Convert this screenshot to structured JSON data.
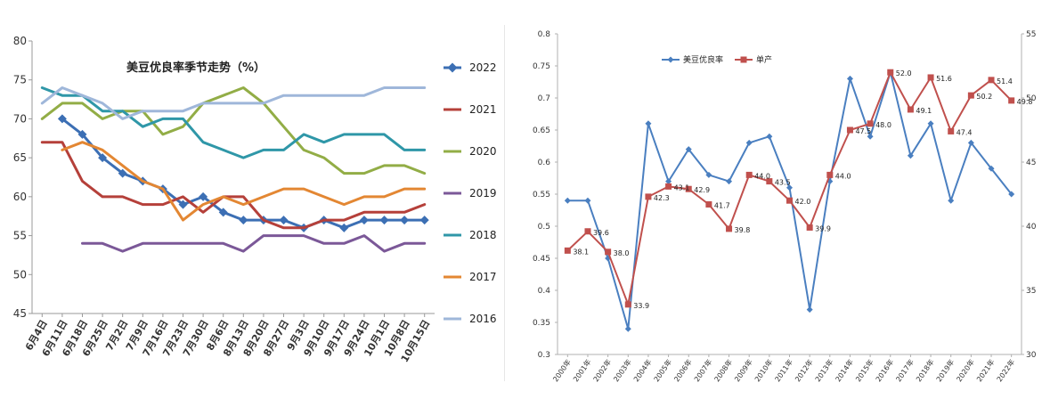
{
  "chart_data": [
    {
      "type": "line",
      "title": "美豆优良率季节走势（%）",
      "categories": [
        "6月4日",
        "6月11日",
        "6月18日",
        "6月25日",
        "7月2日",
        "7月9日",
        "7月16日",
        "7月23日",
        "7月30日",
        "8月6日",
        "8月13日",
        "8月20日",
        "8月27日",
        "9月3日",
        "9月10日",
        "9月17日",
        "9月24日",
        "10月1日",
        "10月8日",
        "10月15日"
      ],
      "ylim": [
        45,
        80
      ],
      "yticks": [
        45,
        50,
        55,
        60,
        65,
        70,
        75,
        80
      ],
      "legend_position": "right",
      "series": [
        {
          "name": "2022",
          "color": "#3c6fb4",
          "marker": "diamond",
          "values": [
            null,
            70,
            68,
            65,
            63,
            62,
            61,
            59,
            60,
            58,
            57,
            57,
            57,
            56,
            57,
            56,
            57,
            57,
            57,
            57
          ]
        },
        {
          "name": "2021",
          "color": "#b5403a",
          "values": [
            67,
            67,
            62,
            60,
            60,
            59,
            59,
            60,
            58,
            60,
            60,
            57,
            56,
            56,
            57,
            57,
            58,
            58,
            58,
            59
          ]
        },
        {
          "name": "2020",
          "color": "#92ad46",
          "values": [
            70,
            72,
            72,
            70,
            71,
            71,
            68,
            69,
            72,
            73,
            74,
            72,
            69,
            66,
            65,
            63,
            63,
            64,
            64,
            63
          ]
        },
        {
          "name": "2019",
          "color": "#7b5898",
          "values": [
            null,
            null,
            54,
            54,
            53,
            54,
            54,
            54,
            54,
            54,
            53,
            55,
            55,
            55,
            54,
            54,
            55,
            53,
            54,
            54
          ]
        },
        {
          "name": "2018",
          "color": "#2f97a8",
          "values": [
            74,
            73,
            73,
            71,
            71,
            69,
            70,
            70,
            67,
            66,
            65,
            66,
            66,
            68,
            67,
            68,
            68,
            68,
            66,
            66
          ]
        },
        {
          "name": "2017",
          "color": "#e38733",
          "values": [
            null,
            66,
            67,
            66,
            64,
            62,
            61,
            57,
            59,
            60,
            59,
            60,
            61,
            61,
            60,
            59,
            60,
            60,
            61,
            61
          ]
        },
        {
          "name": "2016",
          "color": "#9fb7da",
          "values": [
            72,
            74,
            73,
            72,
            70,
            71,
            71,
            71,
            72,
            72,
            72,
            72,
            73,
            73,
            73,
            73,
            73,
            74,
            74,
            74
          ]
        }
      ]
    },
    {
      "type": "line",
      "categories": [
        "2000年",
        "2001年",
        "2002年",
        "2003年",
        "2004年",
        "2005年",
        "2006年",
        "2007年",
        "2008年",
        "2009年",
        "2010年",
        "2011年",
        "2012年",
        "2013年",
        "2014年",
        "2015年",
        "2016年",
        "2017年",
        "2018年",
        "2019年",
        "2020年",
        "2021年",
        "2022年"
      ],
      "legend_position": "top-left",
      "y_left": {
        "ylim": [
          0.3,
          0.8
        ],
        "ticks": [
          "0.3",
          "0.35",
          "0.4",
          "0.45",
          "0.5",
          "0.55",
          "0.6",
          "0.65",
          "0.7",
          "0.75",
          "0.8"
        ]
      },
      "y_right": {
        "ylim": [
          30,
          55
        ],
        "ticks": [
          "30",
          "35",
          "40",
          "45",
          "50",
          "55"
        ]
      },
      "series": [
        {
          "name": "美豆优良率",
          "axis": "left",
          "color": "#4a7fc0",
          "marker": "diamond",
          "values": [
            0.54,
            0.54,
            0.45,
            0.34,
            0.66,
            0.57,
            0.62,
            0.58,
            0.57,
            0.63,
            0.64,
            0.56,
            0.37,
            0.57,
            0.73,
            0.64,
            0.74,
            0.61,
            0.66,
            0.54,
            0.63,
            0.59,
            0.55
          ]
        },
        {
          "name": "单产",
          "axis": "right",
          "color": "#c0504d",
          "marker": "square",
          "values": [
            38.1,
            39.6,
            38.0,
            33.9,
            42.3,
            43.1,
            42.9,
            41.7,
            39.8,
            44.0,
            43.5,
            42.0,
            39.9,
            44.0,
            47.5,
            48.0,
            52.0,
            49.1,
            51.6,
            47.4,
            50.2,
            51.4,
            49.8
          ],
          "labels": [
            "38.1",
            "39.6",
            "38.0",
            "33.9",
            "42.3",
            "43.1",
            "42.9",
            "41.7",
            "39.8",
            "44.0",
            "43.5",
            "42.0",
            "39.9",
            "44.0",
            "47.5",
            "48.0",
            "52.0",
            "49.1",
            "51.6",
            "47.4",
            "50.2",
            "51.4",
            "49.8"
          ]
        }
      ]
    }
  ]
}
